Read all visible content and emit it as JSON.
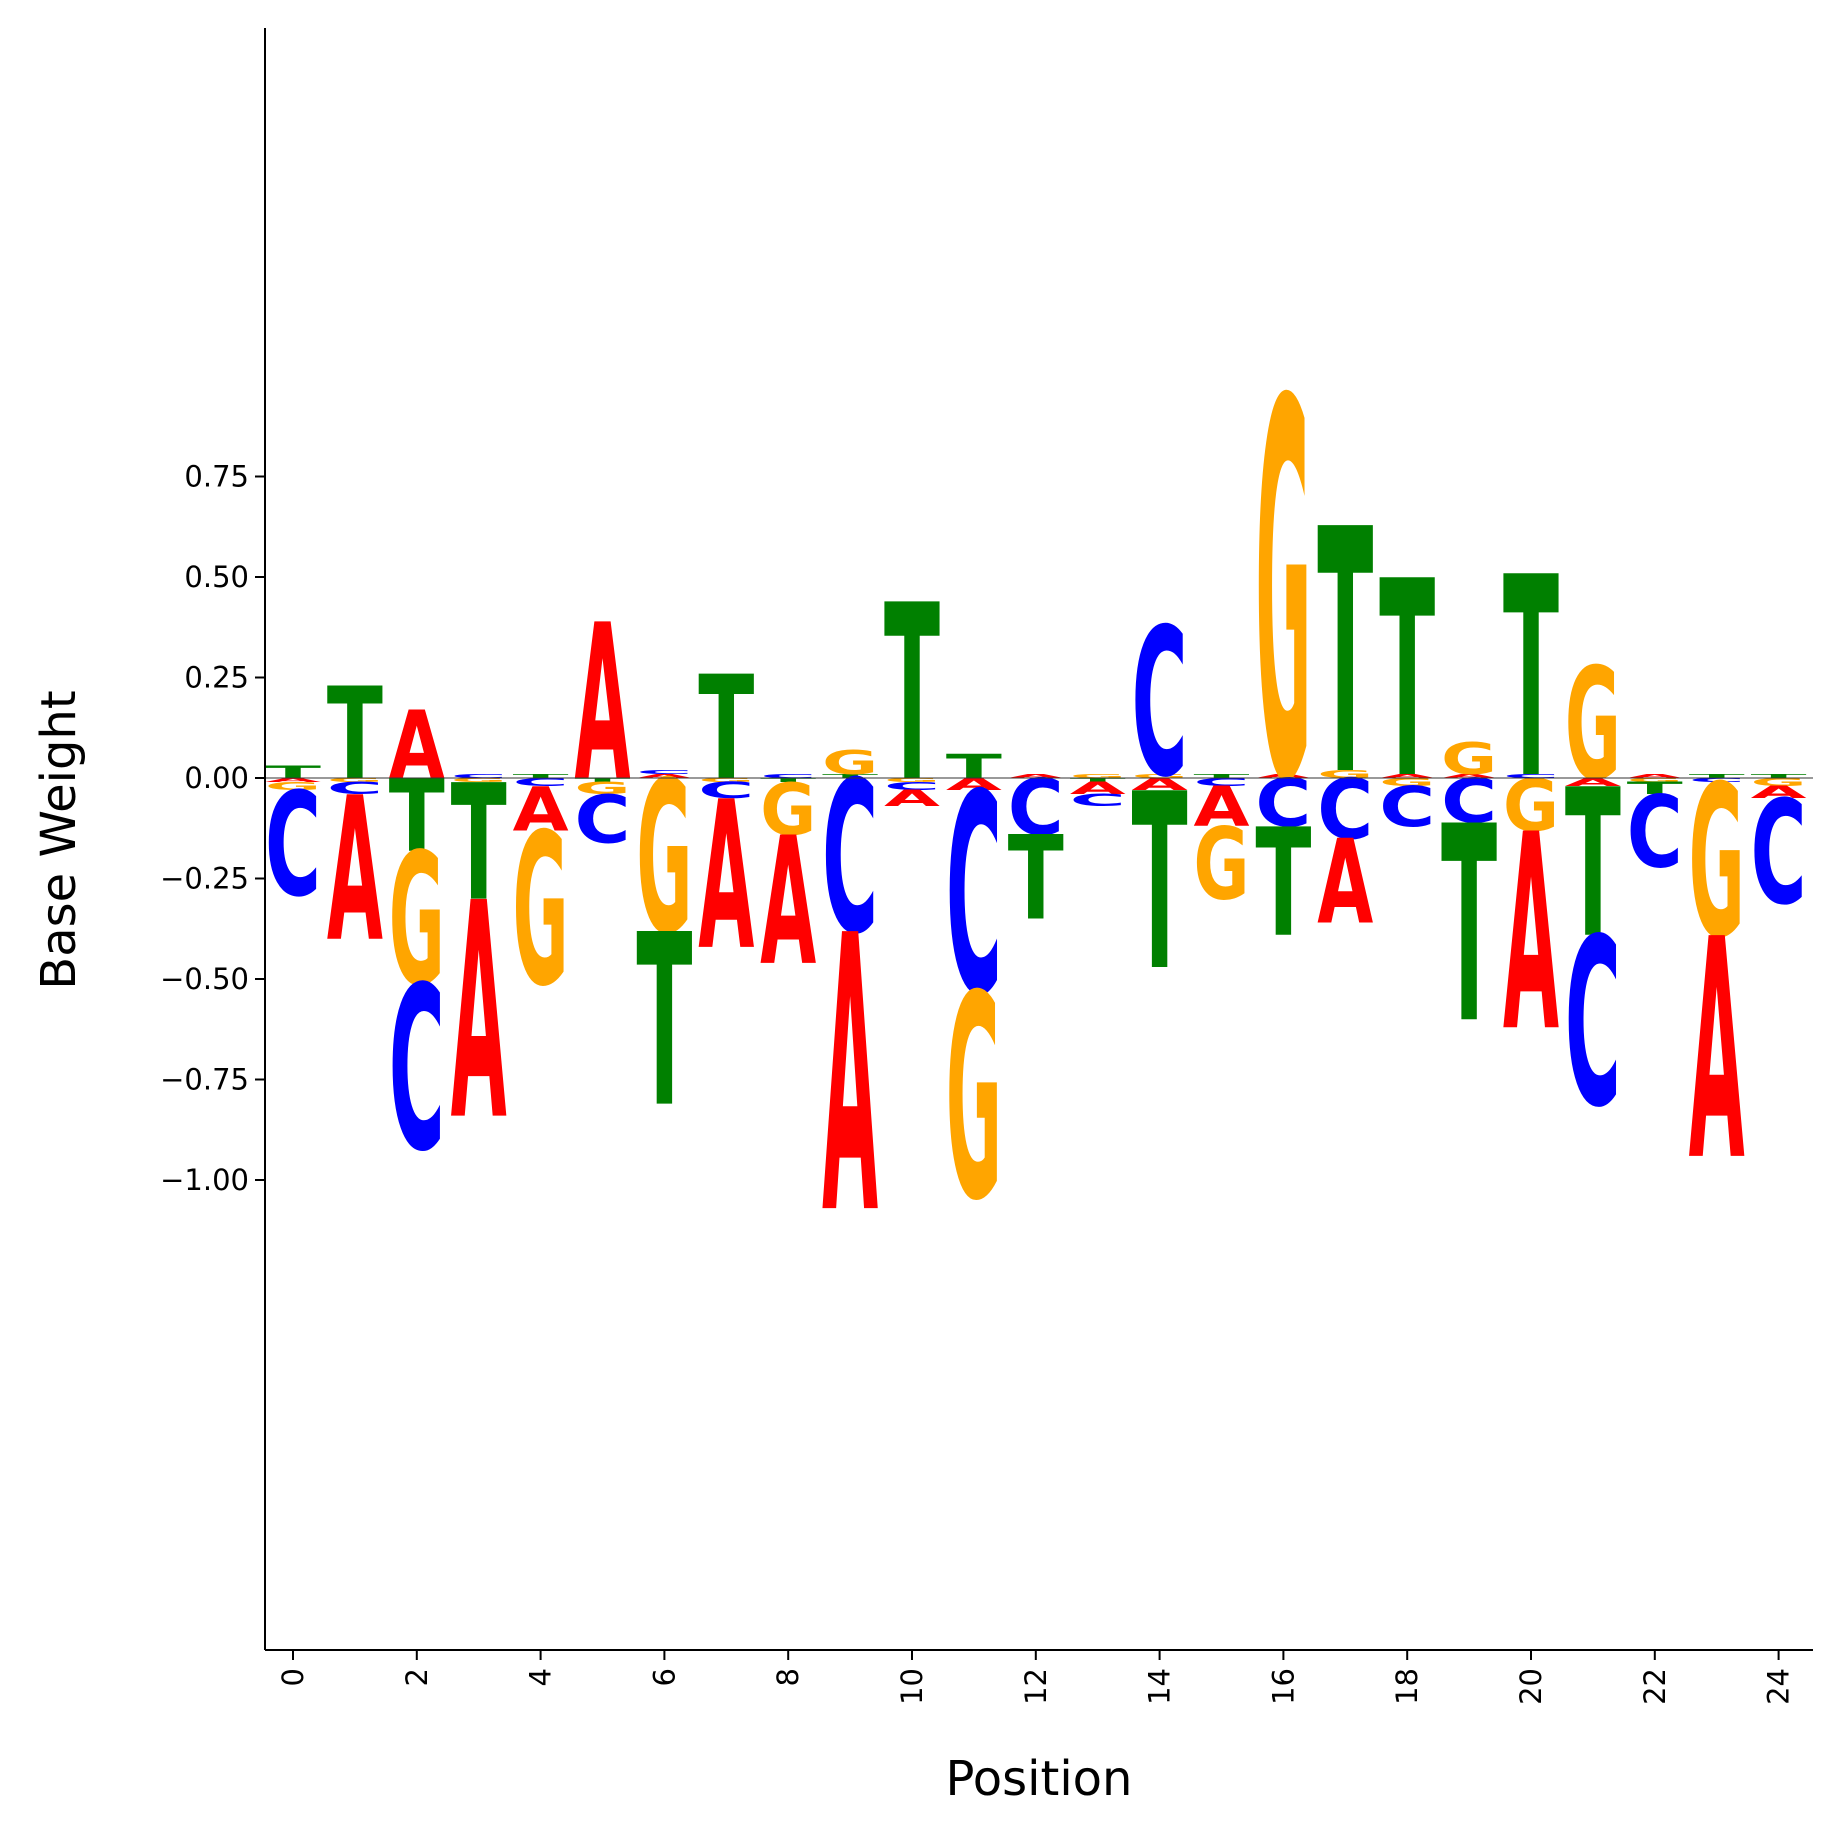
{
  "chart_data": {
    "type": "sequence-logo",
    "title": "",
    "xlabel": "Position",
    "ylabel": "Base Weight",
    "xlim": [
      -0.5,
      24.5
    ],
    "ylim": [
      -1.085,
      0.935
    ],
    "x_ticks": [
      0,
      2,
      4,
      6,
      8,
      10,
      12,
      14,
      16,
      18,
      20,
      22,
      24
    ],
    "x_tick_labels": [
      "0",
      "2",
      "4",
      "6",
      "8",
      "10",
      "12",
      "14",
      "16",
      "18",
      "20",
      "22",
      "24"
    ],
    "y_ticks": [
      0.75,
      0.5,
      0.25,
      0.0,
      -0.25,
      -0.5,
      -0.75,
      -1.0
    ],
    "y_tick_labels": [
      "0.75",
      "0.50",
      "0.25",
      "0.00",
      "−0.25",
      "−0.50",
      "−0.75",
      "−1.00"
    ],
    "grid": false,
    "colors": {
      "A": "#ff0000",
      "C": "#0000ff",
      "G": "#ffa500",
      "T": "#008000"
    },
    "positions": [
      {
        "pos": 0,
        "A": -0.01,
        "C": -0.26,
        "G": -0.02,
        "T": 0.03
      },
      {
        "pos": 1,
        "A": -0.36,
        "C": -0.03,
        "G": -0.01,
        "T": 0.23
      },
      {
        "pos": 2,
        "A": 0.17,
        "C": -0.41,
        "G": -0.33,
        "T": -0.18
      },
      {
        "pos": 3,
        "A": -0.54,
        "C": 0.01,
        "G": -0.01,
        "T": -0.29
      },
      {
        "pos": 4,
        "A": -0.11,
        "C": -0.02,
        "G": -0.38,
        "T": 0.01
      },
      {
        "pos": 5,
        "A": 0.39,
        "C": -0.12,
        "G": -0.03,
        "T": -0.01
      },
      {
        "pos": 6,
        "A": 0.01,
        "C": 0.01,
        "G": -0.38,
        "T": -0.43
      },
      {
        "pos": 7,
        "A": -0.37,
        "C": -0.04,
        "G": -0.01,
        "T": 0.26
      },
      {
        "pos": 8,
        "A": -0.32,
        "C": 0.01,
        "G": -0.13,
        "T": -0.01
      },
      {
        "pos": 9,
        "A": -0.69,
        "C": -0.38,
        "G": 0.06,
        "T": 0.01
      },
      {
        "pos": 10,
        "A": -0.04,
        "C": -0.02,
        "G": -0.01,
        "T": 0.44
      },
      {
        "pos": 11,
        "A": -0.03,
        "C": -0.5,
        "G": -0.51,
        "T": 0.06
      },
      {
        "pos": 12,
        "A": 0.01,
        "C": -0.14,
        "G": 0.0,
        "T": -0.21
      },
      {
        "pos": 13,
        "A": -0.03,
        "C": -0.03,
        "G": 0.01,
        "T": -0.01
      },
      {
        "pos": 14,
        "A": -0.03,
        "C": 0.37,
        "G": 0.01,
        "T": -0.44
      },
      {
        "pos": 15,
        "A": -0.1,
        "C": -0.02,
        "G": -0.18,
        "T": 0.01
      },
      {
        "pos": 16,
        "A": 0.01,
        "C": -0.12,
        "G": 0.94,
        "T": -0.27
      },
      {
        "pos": 17,
        "A": -0.21,
        "C": -0.15,
        "G": 0.02,
        "T": 0.61
      },
      {
        "pos": 18,
        "A": 0.01,
        "C": -0.1,
        "G": -0.02,
        "T": 0.49
      },
      {
        "pos": 19,
        "A": 0.01,
        "C": -0.11,
        "G": 0.08,
        "T": -0.49
      },
      {
        "pos": 20,
        "A": -0.49,
        "C": 0.01,
        "G": -0.13,
        "T": 0.5
      },
      {
        "pos": 21,
        "A": -0.02,
        "C": -0.42,
        "G": 0.28,
        "T": -0.37
      },
      {
        "pos": 22,
        "A": 0.01,
        "C": -0.18,
        "G": -0.01,
        "T": -0.03
      },
      {
        "pos": 23,
        "A": -0.55,
        "C": -0.01,
        "G": -0.38,
        "T": 0.01
      },
      {
        "pos": 24,
        "A": -0.03,
        "C": -0.26,
        "G": -0.02,
        "T": 0.01
      }
    ]
  }
}
